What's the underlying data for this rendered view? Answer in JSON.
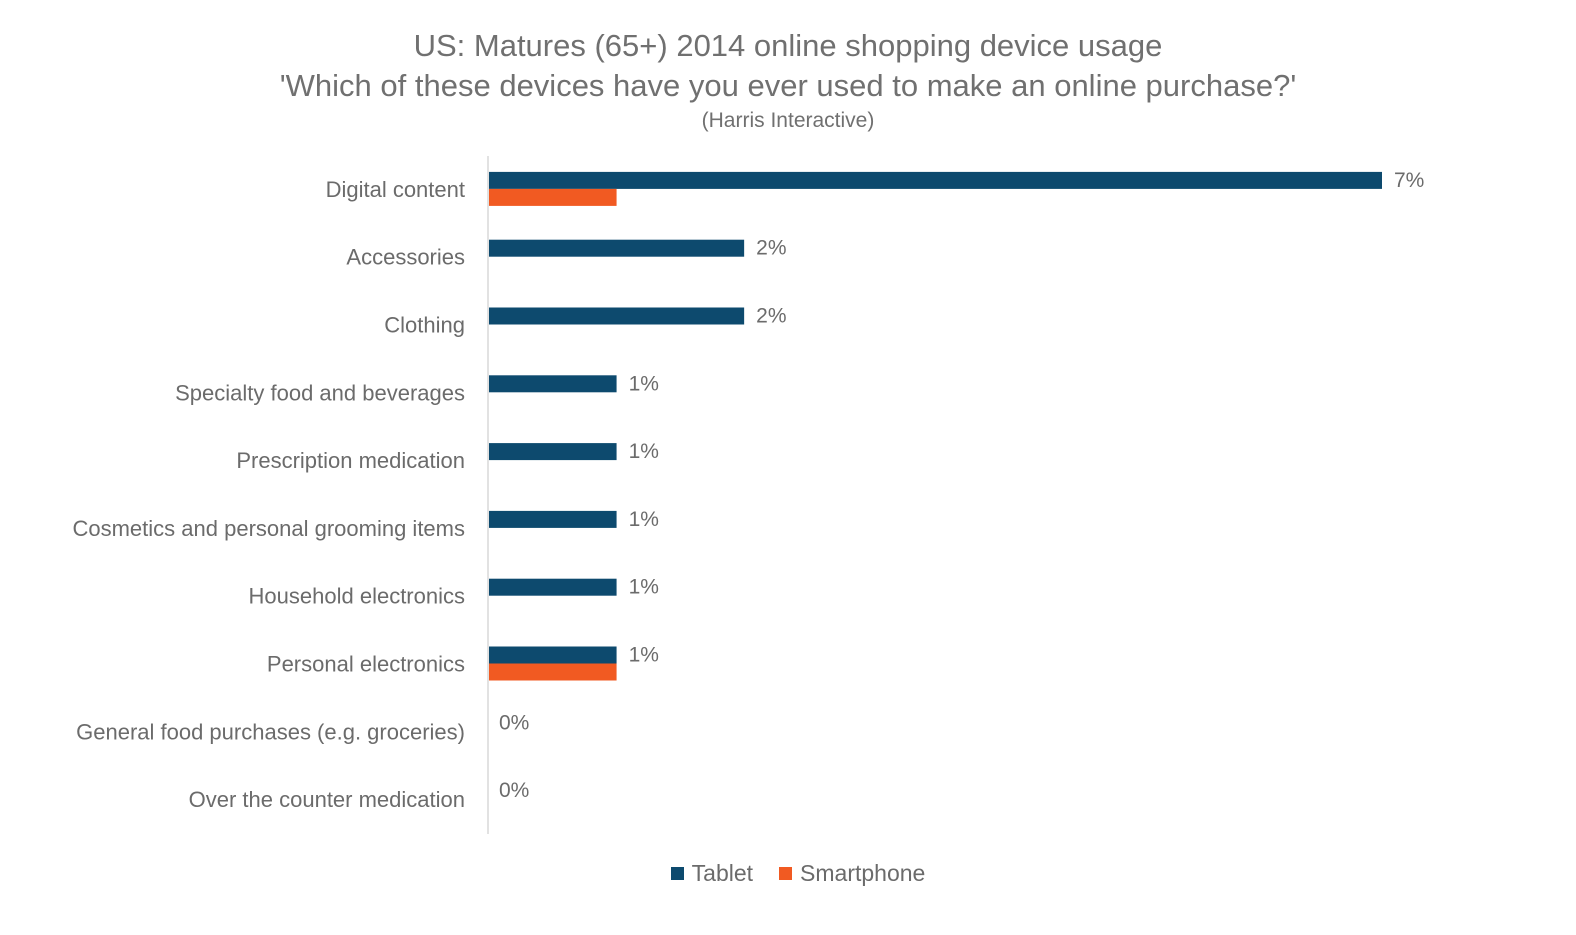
{
  "chart_data": {
    "type": "bar",
    "orientation": "horizontal",
    "title": "US: Matures (65+) 2014 online shopping device usage",
    "subtitle": "'Which of these devices have you ever used to make an online purchase?'",
    "source": "(Harris Interactive)",
    "categories": [
      "Digital content",
      "Accessories",
      "Clothing",
      "Specialty food and beverages",
      "Prescription medication",
      "Cosmetics and personal grooming items",
      "Household electronics",
      "Personal electronics",
      "General food purchases (e.g. groceries)",
      "Over the counter medication"
    ],
    "series": [
      {
        "name": "Tablet",
        "color": "#0d4a6e",
        "values": [
          7,
          2,
          2,
          1,
          1,
          1,
          1,
          1,
          0,
          0
        ],
        "data_labels": [
          "7%",
          "2%",
          "2%",
          "1%",
          "1%",
          "1%",
          "1%",
          "1%",
          "0%",
          "0%"
        ]
      },
      {
        "name": "Smartphone",
        "color": "#f15a22",
        "values": [
          1,
          0,
          0,
          0,
          0,
          0,
          0,
          1,
          0,
          0
        ]
      }
    ],
    "xlim": [
      0,
      7
    ],
    "grid": false,
    "legend": "bottom"
  }
}
